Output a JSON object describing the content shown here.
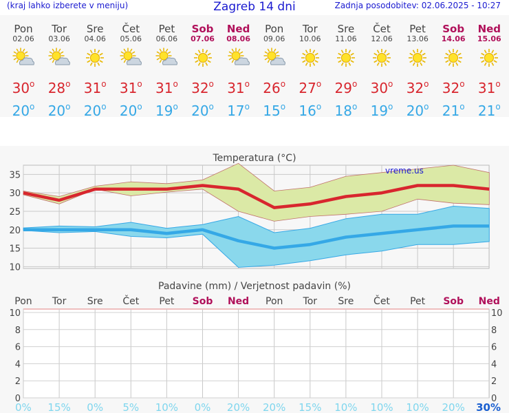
{
  "header": {
    "hint": "(kraj lahko izberete v meniju)",
    "title": "Zagreb 14 dni",
    "updated": "Zadnja posodobitev: 02.06.2025 - 10:27"
  },
  "colors": {
    "max": "#d8262e",
    "min": "#35a8e6",
    "weekend": "#b0105a",
    "precip_pct": "#7fd6ee"
  },
  "days": [
    {
      "name": "Pon",
      "date": "02.06",
      "icon": "sun-cloud-icon",
      "max": "30",
      "min": "20",
      "weekend": false,
      "precip_pct": "0%"
    },
    {
      "name": "Tor",
      "date": "03.06",
      "icon": "sun-cloud-icon",
      "max": "28",
      "min": "20",
      "weekend": false,
      "precip_pct": "15%"
    },
    {
      "name": "Sre",
      "date": "04.06",
      "icon": "sun-icon",
      "max": "31",
      "min": "20",
      "weekend": false,
      "precip_pct": "0%"
    },
    {
      "name": "Čet",
      "date": "05.06",
      "icon": "sun-cloud-icon",
      "max": "31",
      "min": "20",
      "weekend": false,
      "precip_pct": "5%"
    },
    {
      "name": "Pet",
      "date": "06.06",
      "icon": "sun-cloud-icon",
      "max": "31",
      "min": "19",
      "weekend": false,
      "precip_pct": "10%"
    },
    {
      "name": "Sob",
      "date": "07.06",
      "icon": "sun-icon",
      "max": "32",
      "min": "20",
      "weekend": true,
      "precip_pct": "0%"
    },
    {
      "name": "Ned",
      "date": "08.06",
      "icon": "sun-cloud-icon",
      "max": "31",
      "min": "17",
      "weekend": true,
      "precip_pct": "20%"
    },
    {
      "name": "Pon",
      "date": "09.06",
      "icon": "sun-cloud-icon",
      "max": "26",
      "min": "15",
      "weekend": false,
      "precip_pct": "20%"
    },
    {
      "name": "Tor",
      "date": "10.06",
      "icon": "sun-icon",
      "max": "27",
      "min": "16",
      "weekend": false,
      "precip_pct": "15%"
    },
    {
      "name": "Sre",
      "date": "11.06",
      "icon": "sun-icon",
      "max": "29",
      "min": "18",
      "weekend": false,
      "precip_pct": "10%"
    },
    {
      "name": "Čet",
      "date": "12.06",
      "icon": "sun-icon",
      "max": "30",
      "min": "19",
      "weekend": false,
      "precip_pct": "10%"
    },
    {
      "name": "Pet",
      "date": "13.06",
      "icon": "sun-icon",
      "max": "32",
      "min": "20",
      "weekend": false,
      "precip_pct": "10%"
    },
    {
      "name": "Sob",
      "date": "14.06",
      "icon": "sun-icon",
      "max": "32",
      "min": "21",
      "weekend": true,
      "precip_pct": "20%"
    },
    {
      "name": "Ned",
      "date": "15.06",
      "icon": "sun-icon",
      "max": "31",
      "min": "21",
      "weekend": true,
      "precip_pct": "30%"
    }
  ],
  "chart_data": [
    {
      "type": "line",
      "title": "Temperatura (°C)",
      "watermark": "vreme.us",
      "x": [
        "Pon",
        "Tor",
        "Sre",
        "Čet",
        "Pet",
        "Sob",
        "Ned",
        "Pon",
        "Tor",
        "Sre",
        "Čet",
        "Pet",
        "Sob",
        "Ned"
      ],
      "yticks": [
        10,
        15,
        20,
        25,
        30,
        35
      ],
      "ylim": [
        9.5,
        37.5
      ],
      "series": [
        {
          "role": "max-mean",
          "values": [
            30,
            28,
            31,
            31,
            31,
            32,
            31,
            26,
            27,
            29,
            30,
            32,
            32,
            31
          ]
        },
        {
          "role": "max-upper",
          "values": [
            30.5,
            29,
            31.8,
            33,
            32.5,
            33.5,
            38,
            30.5,
            31.5,
            34.5,
            35.5,
            36.5,
            37.5,
            35.5
          ]
        },
        {
          "role": "max-lower",
          "values": [
            29.5,
            27,
            31,
            29.2,
            30.2,
            31,
            25,
            22.3,
            23.6,
            24.2,
            25,
            28.3,
            27.2,
            26.8
          ]
        },
        {
          "role": "min-mean",
          "values": [
            20,
            20,
            20,
            20,
            19,
            20,
            17,
            15,
            16,
            18,
            19,
            20,
            21,
            21
          ]
        },
        {
          "role": "min-upper",
          "values": [
            20.5,
            21,
            20.8,
            22,
            20.4,
            21.4,
            23.6,
            19.2,
            20.4,
            23,
            24.2,
            24.2,
            26.4,
            25.8
          ]
        },
        {
          "role": "min-lower",
          "values": [
            19.8,
            19.2,
            19.5,
            18.2,
            17.8,
            18.8,
            9.8,
            10.4,
            11.6,
            13.2,
            14.2,
            16,
            16,
            16.8
          ]
        }
      ]
    },
    {
      "type": "bar",
      "title": "Padavine (mm) / Verjetnost padavin (%)",
      "categories": [
        "Pon",
        "Tor",
        "Sre",
        "Čet",
        "Pet",
        "Sob",
        "Ned",
        "Pon",
        "Tor",
        "Sre",
        "Čet",
        "Pet",
        "Sob",
        "Ned"
      ],
      "values": [
        0,
        0,
        0,
        0,
        0,
        0,
        0,
        0,
        0,
        0,
        0,
        0,
        0,
        0
      ],
      "probability": [
        "0%",
        "15%",
        "0%",
        "5%",
        "10%",
        "0%",
        "20%",
        "20%",
        "15%",
        "10%",
        "10%",
        "10%",
        "20%",
        "30%"
      ],
      "yticks": [
        0,
        2,
        4,
        6,
        8,
        10
      ],
      "ylim": [
        0,
        10
      ]
    }
  ]
}
